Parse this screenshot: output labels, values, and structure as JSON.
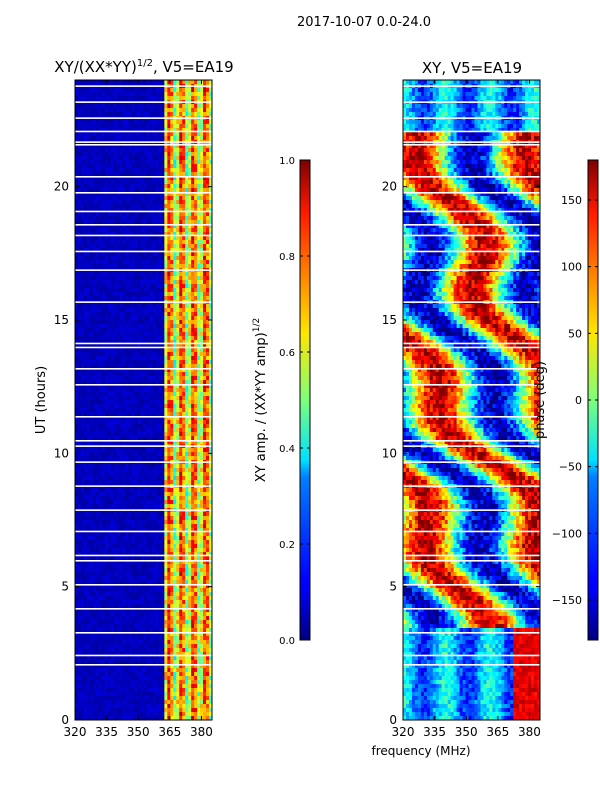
{
  "suptitle": "2017-10-07 0.0-24.0",
  "colors": {
    "background": "#00008f",
    "gap": "#ffffff",
    "axis": "#000000"
  },
  "chart_data": [
    {
      "type": "heatmap",
      "title_main": "XY/(XX*YY)",
      "title_exp": "1/2",
      "title_suffix": ", V5=EA19",
      "xlabel": "",
      "ylabel": "UT (hours)",
      "xlim": [
        320,
        385
      ],
      "ylim": [
        0,
        24
      ],
      "xticks": [
        320,
        335,
        350,
        365,
        380
      ],
      "yticks": [
        0,
        5,
        10,
        15,
        20
      ],
      "colorbar": {
        "label_main": "XY amp. / (XX*YY amp)",
        "label_exp": "1/2",
        "range": [
          0.0,
          1.0
        ],
        "ticks": [
          "0.0",
          "0.2",
          "0.4",
          "0.6",
          "0.8",
          "1.0"
        ],
        "tick_values": [
          0.0,
          0.2,
          0.4,
          0.6,
          0.8,
          1.0
        ]
      }
    },
    {
      "type": "heatmap",
      "title_main": "XY, V5=EA19",
      "title_exp": "",
      "title_suffix": "",
      "xlabel": "frequency (MHz)",
      "ylabel": "",
      "xlim": [
        320,
        385
      ],
      "ylim": [
        0,
        24
      ],
      "xticks": [
        320,
        335,
        350,
        365,
        380
      ],
      "yticks": [
        0,
        5,
        10,
        15,
        20
      ],
      "colorbar": {
        "label_main": "phase (deg)",
        "label_exp": "",
        "range": [
          -180,
          180
        ],
        "ticks": [
          "−150",
          "−100",
          "−50",
          "0",
          "50",
          "100",
          "150"
        ],
        "tick_values": [
          -150,
          -100,
          -50,
          0,
          50,
          100,
          150
        ]
      }
    }
  ]
}
